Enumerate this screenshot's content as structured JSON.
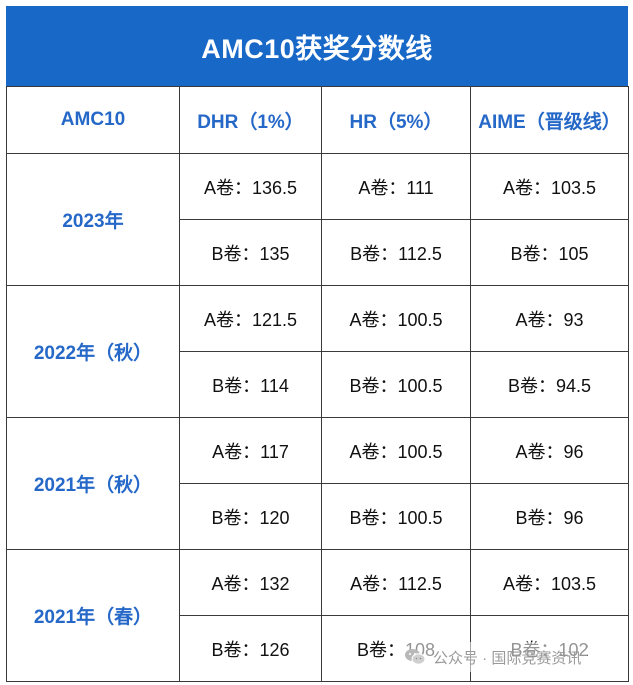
{
  "title": "AMC10获奖分数线",
  "header": {
    "col0": "AMC10",
    "col1": "DHR（1%）",
    "col2": "HR（5%）",
    "col3": "AIME（晋级线）"
  },
  "groups": [
    {
      "year": "2023年",
      "rows": [
        {
          "dhr": "A卷：136.5",
          "hr": "A卷：111",
          "aime": "A卷：103.5"
        },
        {
          "dhr": "B卷：135",
          "hr": "B卷：112.5",
          "aime": "B卷：105"
        }
      ]
    },
    {
      "year": "2022年（秋）",
      "rows": [
        {
          "dhr": "A卷：121.5",
          "hr": "A卷：100.5",
          "aime": "A卷：93"
        },
        {
          "dhr": "B卷：114",
          "hr": "B卷：100.5",
          "aime": "B卷：94.5"
        }
      ]
    },
    {
      "year": "2021年（秋）",
      "rows": [
        {
          "dhr": "A卷：117",
          "hr": "A卷：100.5",
          "aime": "A卷：96"
        },
        {
          "dhr": "B卷：120",
          "hr": "B卷：100.5",
          "aime": "B卷：96"
        }
      ]
    },
    {
      "year": "2021年（春）",
      "rows": [
        {
          "dhr": "A卷：132",
          "hr": "A卷：112.5",
          "aime": "A卷：103.5"
        },
        {
          "dhr": "B卷：126",
          "hr": "B卷：108",
          "aime": "B卷：102"
        }
      ]
    }
  ],
  "watermark": {
    "text": "公众号 · 国际竞赛资讯",
    "icon": "wechat-icon"
  },
  "colors": {
    "title_bg": "#1868c8",
    "accent_text": "#2568c8"
  }
}
